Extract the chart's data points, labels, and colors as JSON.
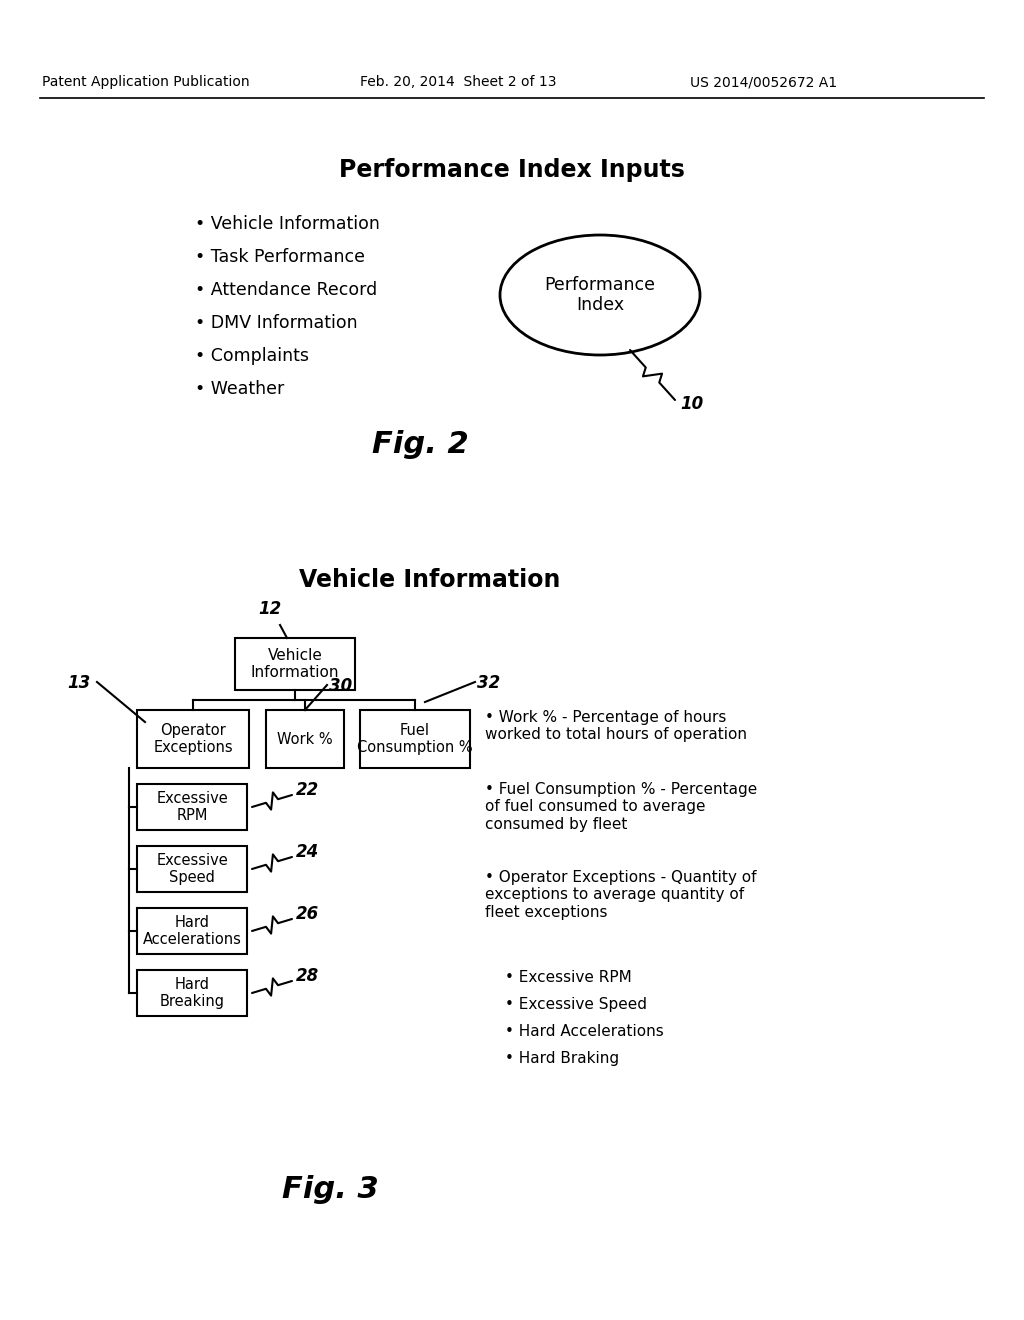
{
  "header_left": "Patent Application Publication",
  "header_mid": "Feb. 20, 2014  Sheet 2 of 13",
  "header_right": "US 2014/0052672 A1",
  "fig2_title": "Performance Index Inputs",
  "fig2_bullets": [
    "Vehicle Information",
    "Task Performance",
    "Attendance Record",
    "DMV Information",
    "Complaints",
    "Weather"
  ],
  "fig2_ellipse_label": "Performance\nIndex",
  "fig2_ellipse_number": "10",
  "fig2_label": "Fig. 2",
  "fig3_title": "Vehicle Information",
  "fig3_label": "Fig. 3",
  "fig3_ref12": "12",
  "fig3_ref13": "13",
  "fig3_ref30": "30",
  "fig3_ref32": "32",
  "fig3_ref22": "22",
  "fig3_ref24": "24",
  "fig3_ref26": "26",
  "fig3_ref28": "28",
  "fig3_box_vi": "Vehicle\nInformation",
  "fig3_box_oe": "Operator\nExceptions",
  "fig3_box_wk": "Work %",
  "fig3_box_fc": "Fuel\nConsumption %",
  "fig3_box_erpm": "Excessive\nRPM",
  "fig3_box_espd": "Excessive\nSpeed",
  "fig3_box_ha": "Hard\nAccelerations",
  "fig3_box_hb": "Hard\nBreaking",
  "fig3_bullet1": "Work % - Percentage of hours\nworked to total hours of operation",
  "fig3_bullet2": "Fuel Consumption % - Percentage\nof fuel consumed to average\nconsumed by fleet",
  "fig3_bullet3": "Operator Exceptions - Quantity of\nexceptions to average quantity of\nfleet exceptions",
  "fig3_sub1": "Excessive RPM",
  "fig3_sub2": "Excessive Speed",
  "fig3_sub3": "Hard Accelerations",
  "fig3_sub4": "Hard Braking",
  "bg_color": "#ffffff"
}
